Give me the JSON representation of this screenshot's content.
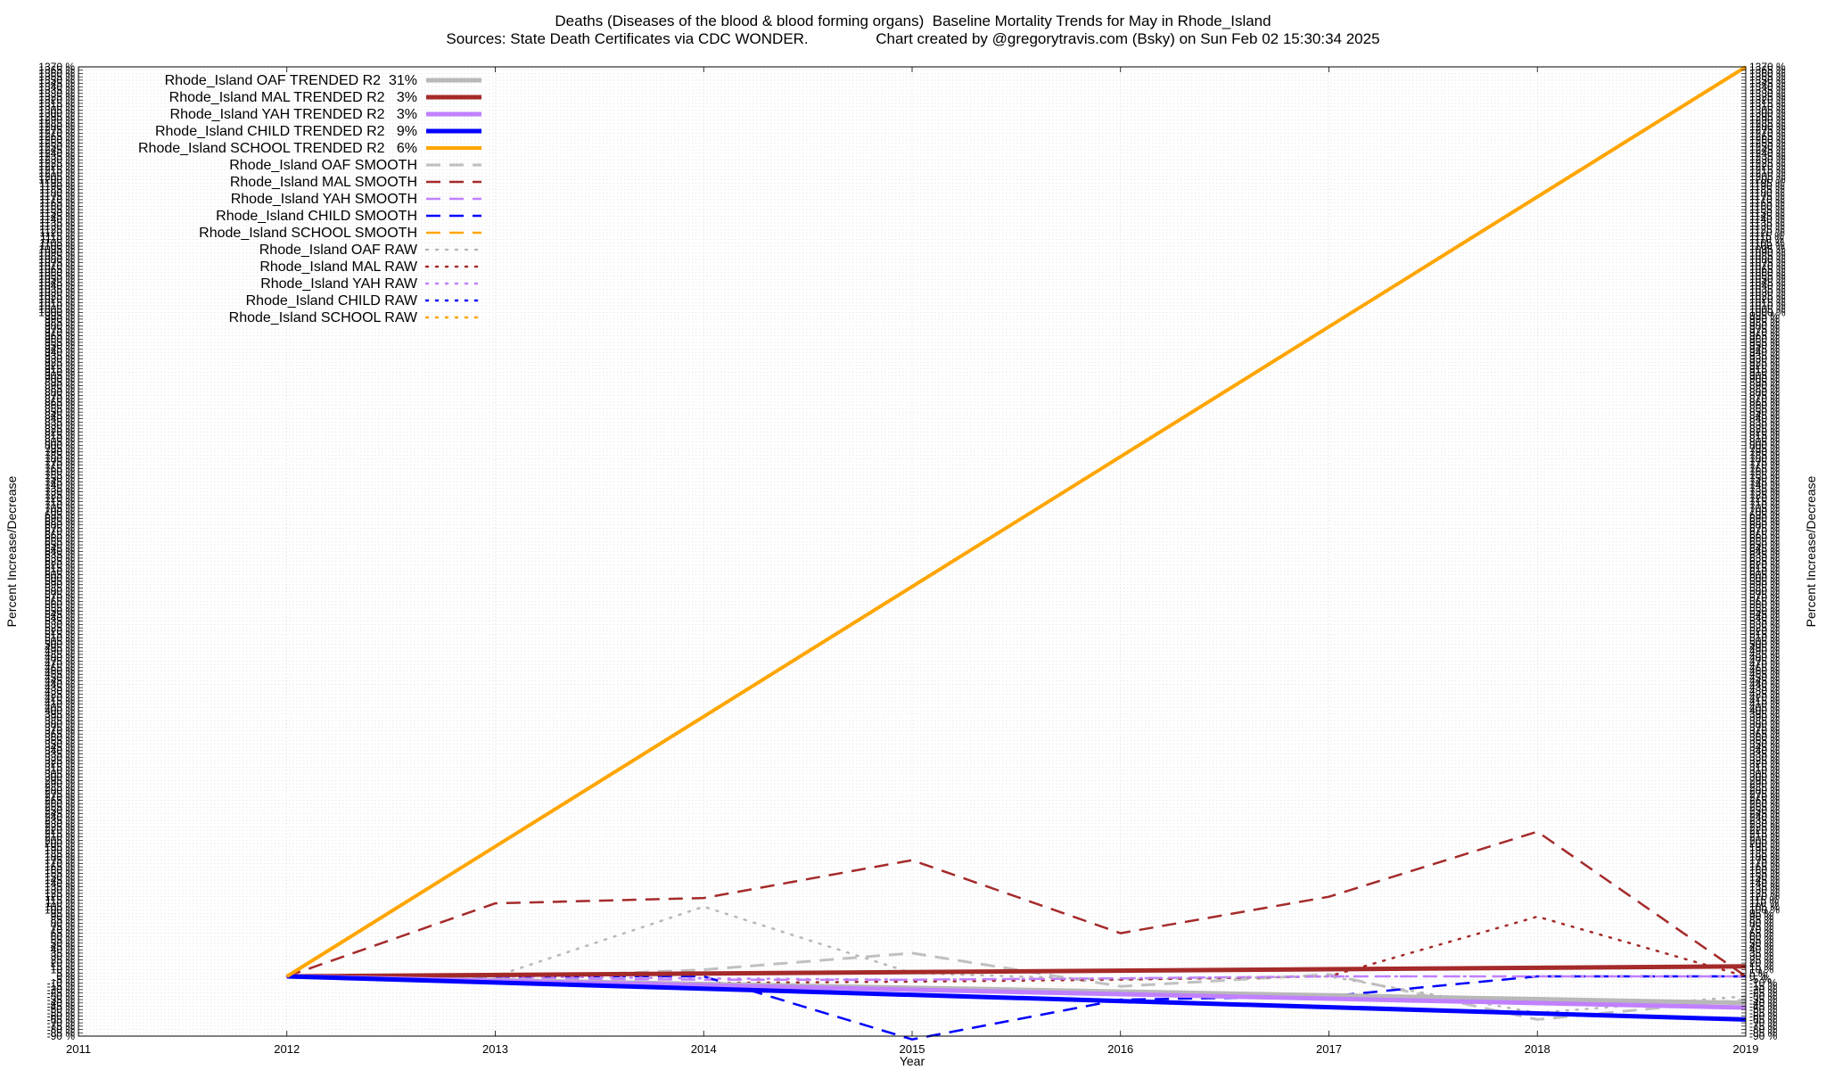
{
  "chart_data": {
    "type": "line",
    "title": "Deaths (Diseases of the blood & blood forming organs)  Baseline Mortality Trends for May in Rhode_Island",
    "subtitle": "Sources: State Death Certificates via CDC WONDER.                Chart created by @gregorytravis.com (Bsky) on Sun Feb 02 15:30:34 2025",
    "xlabel": "Year",
    "ylabel": "Percent Increase/Decrease",
    "y2label": "Percent Increase/Decrease",
    "xlim": [
      2011,
      2019
    ],
    "ylim": [
      -90,
      1370
    ],
    "x_ticks": [
      "2011",
      "2012",
      "2013",
      "2014",
      "2015",
      "2016",
      "2017",
      "2018",
      "2019"
    ],
    "y_tick_step": 5,
    "y_tick_suffix": " %",
    "grid": true,
    "legend_position": "top-left",
    "series": [
      {
        "name": "Rhode_Island OAF TRENDED R2  31%",
        "style": "solid",
        "color": "#b8b8b8",
        "width": 5,
        "x": [
          2012,
          2019
        ],
        "y": [
          0,
          -40
        ]
      },
      {
        "name": "Rhode_Island MAL TRENDED R2   3%",
        "style": "solid",
        "color": "#a52a2a",
        "width": 5,
        "x": [
          2012,
          2019
        ],
        "y": [
          0,
          15
        ]
      },
      {
        "name": "Rhode_Island YAH TRENDED R2   3%",
        "style": "solid",
        "color": "#c080ff",
        "width": 5,
        "x": [
          2012,
          2019
        ],
        "y": [
          0,
          -47
        ]
      },
      {
        "name": "Rhode_Island CHILD TRENDED R2   9%",
        "style": "solid",
        "color": "#0000ff",
        "width": 5,
        "x": [
          2012,
          2019
        ],
        "y": [
          0,
          -65
        ]
      },
      {
        "name": "Rhode_Island SCHOOL TRENDED R2   6%",
        "style": "solid",
        "color": "#ffa500",
        "width": 4,
        "x": [
          2012,
          2019
        ],
        "y": [
          0,
          1370
        ]
      },
      {
        "name": "Rhode_Island OAF SMOOTH",
        "style": "dashed",
        "color": "#c0c0c0",
        "width": 3,
        "x": [
          2012,
          2013,
          2014,
          2015,
          2016,
          2017,
          2018,
          2019
        ],
        "y": [
          0,
          -3,
          10,
          35,
          -15,
          3,
          -65,
          -35
        ]
      },
      {
        "name": "Rhode_Island MAL SMOOTH",
        "style": "dashed",
        "color": "#a52a2a",
        "width": 2.5,
        "x": [
          2012,
          2013,
          2014,
          2015,
          2016,
          2017,
          2018,
          2019
        ],
        "y": [
          0,
          110,
          118,
          175,
          65,
          120,
          218,
          0
        ]
      },
      {
        "name": "Rhode_Island YAH SMOOTH",
        "style": "dashed",
        "color": "#c080ff",
        "width": 2.5,
        "x": [
          2012,
          2013,
          2014,
          2015,
          2016,
          2017,
          2018,
          2019
        ],
        "y": [
          0,
          -3,
          -5,
          -5,
          -3,
          0,
          0,
          0
        ]
      },
      {
        "name": "Rhode_Island CHILD SMOOTH",
        "style": "dashed",
        "color": "#0000ff",
        "width": 2.5,
        "x": [
          2012,
          2013,
          2014,
          2015,
          2016,
          2017,
          2018,
          2019
        ],
        "y": [
          0,
          0,
          0,
          -95,
          -35,
          -30,
          0,
          0
        ]
      },
      {
        "name": "Rhode_Island SCHOOL SMOOTH",
        "style": "dashed",
        "color": "#ffa500",
        "width": 2.5,
        "x": [],
        "y": []
      },
      {
        "name": "Rhode_Island OAF RAW",
        "style": "dotted",
        "color": "#b8b8b8",
        "width": 2.5,
        "x": [
          2012,
          2013,
          2014,
          2015,
          2016,
          2017,
          2018,
          2019
        ],
        "y": [
          0,
          0,
          105,
          5,
          -5,
          0,
          -55,
          -30
        ]
      },
      {
        "name": "Rhode_Island MAL RAW",
        "style": "dotted",
        "color": "#a52a2a",
        "width": 2.5,
        "x": [
          2012,
          2013,
          2014,
          2015,
          2016,
          2017,
          2018,
          2019
        ],
        "y": [
          0,
          -5,
          -10,
          -8,
          -5,
          0,
          90,
          0
        ]
      },
      {
        "name": "Rhode_Island YAH RAW",
        "style": "dotted",
        "color": "#c080ff",
        "width": 2.5,
        "x": [
          2012,
          2013,
          2014,
          2015,
          2016,
          2017,
          2018,
          2019
        ],
        "y": [
          0,
          0,
          -3,
          -5,
          -3,
          0,
          0,
          0
        ]
      },
      {
        "name": "Rhode_Island CHILD RAW",
        "style": "dotted",
        "color": "#0000ff",
        "width": 2.5,
        "x": [],
        "y": []
      },
      {
        "name": "Rhode_Island SCHOOL RAW",
        "style": "dotted",
        "color": "#ffa500",
        "width": 2.5,
        "x": [],
        "y": []
      }
    ]
  }
}
